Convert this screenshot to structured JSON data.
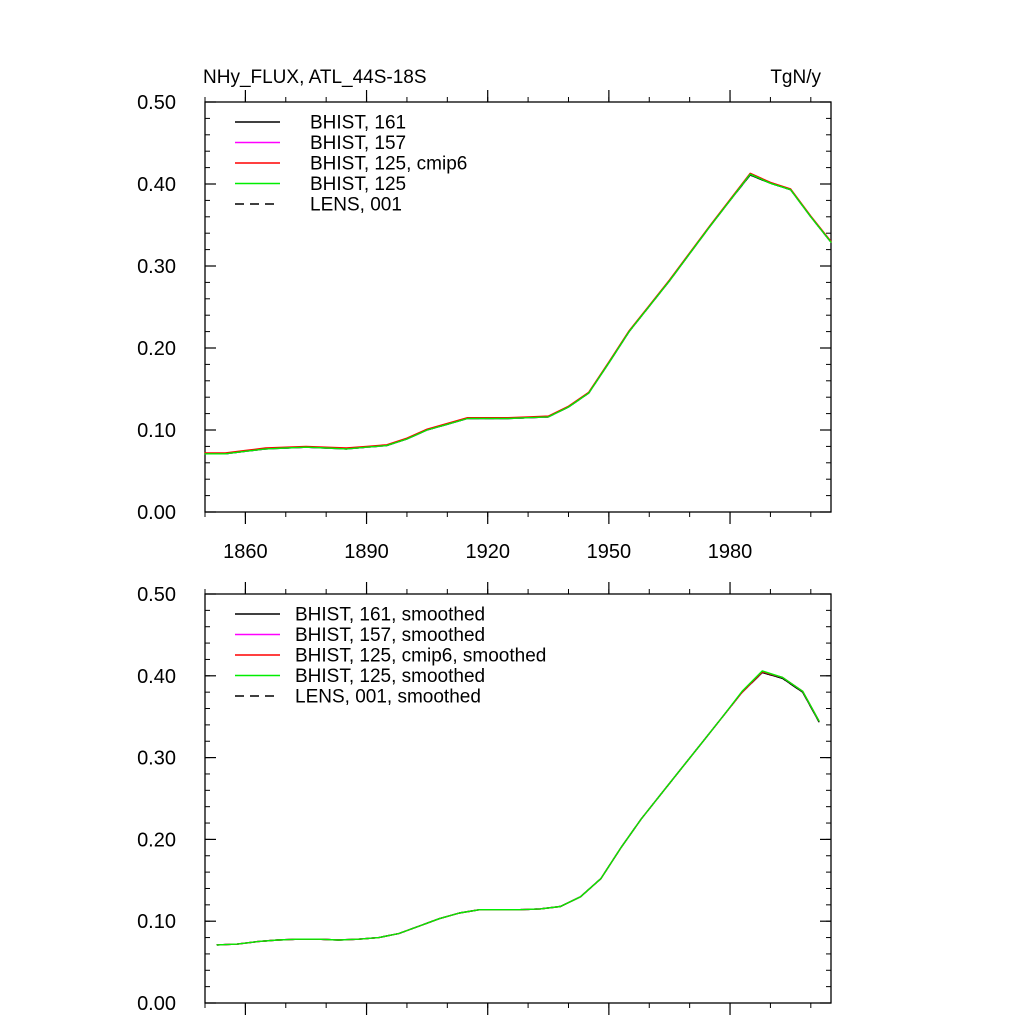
{
  "chart_data": [
    {
      "type": "line",
      "title": "NHy_FLUX, ATL_44S-18S",
      "units": "TgN/y",
      "xlabel": "",
      "ylabel": "",
      "xlim": [
        1850,
        2005
      ],
      "ylim": [
        0,
        0.5
      ],
      "xticks": [
        1860,
        1890,
        1920,
        1950,
        1980
      ],
      "xtick_labels": [
        "1860",
        "1890",
        "1920",
        "1950",
        "1980"
      ],
      "yticks": [
        0,
        0.1,
        0.2,
        0.3,
        0.4,
        0.5
      ],
      "ytick_labels": [
        "0.00",
        "0.10",
        "0.20",
        "0.30",
        "0.40",
        "0.50"
      ],
      "grid": false,
      "legend_position": "top-left",
      "x": [
        1850,
        1855,
        1860,
        1865,
        1870,
        1875,
        1880,
        1885,
        1890,
        1895,
        1900,
        1905,
        1910,
        1915,
        1920,
        1925,
        1930,
        1935,
        1940,
        1945,
        1950,
        1955,
        1960,
        1965,
        1970,
        1975,
        1980,
        1985,
        1990,
        1995,
        2000,
        2005
      ],
      "series": [
        {
          "name": "BHIST, 161",
          "color": "#000000",
          "dash": "solid",
          "values": [
            0.071,
            0.071,
            0.074,
            0.077,
            0.078,
            0.079,
            0.078,
            0.077,
            0.079,
            0.081,
            0.089,
            0.1,
            0.107,
            0.114,
            0.114,
            0.114,
            0.115,
            0.116,
            0.128,
            0.145,
            0.182,
            0.22,
            0.251,
            0.282,
            0.315,
            0.348,
            0.38,
            0.411,
            0.401,
            0.393,
            0.36,
            0.329
          ]
        },
        {
          "name": "BHIST, 157",
          "color": "#ff00ff",
          "dash": "solid",
          "values": [
            0.071,
            0.071,
            0.074,
            0.077,
            0.078,
            0.079,
            0.078,
            0.077,
            0.079,
            0.081,
            0.089,
            0.1,
            0.107,
            0.114,
            0.114,
            0.114,
            0.115,
            0.116,
            0.128,
            0.145,
            0.182,
            0.22,
            0.251,
            0.282,
            0.315,
            0.348,
            0.38,
            0.412,
            0.402,
            0.393,
            0.36,
            0.329
          ]
        },
        {
          "name": "BHIST, 125, cmip6",
          "color": "#ff0000",
          "dash": "solid",
          "values": [
            0.072,
            0.072,
            0.075,
            0.078,
            0.079,
            0.08,
            0.079,
            0.078,
            0.08,
            0.082,
            0.09,
            0.101,
            0.108,
            0.115,
            0.115,
            0.115,
            0.116,
            0.117,
            0.129,
            0.146,
            0.183,
            0.221,
            0.252,
            0.283,
            0.316,
            0.349,
            0.381,
            0.413,
            0.402,
            0.394,
            0.361,
            0.33
          ]
        },
        {
          "name": "BHIST, 125",
          "color": "#00ee00",
          "dash": "solid",
          "values": [
            0.071,
            0.071,
            0.074,
            0.077,
            0.078,
            0.079,
            0.078,
            0.077,
            0.079,
            0.081,
            0.089,
            0.1,
            0.107,
            0.114,
            0.114,
            0.114,
            0.115,
            0.116,
            0.128,
            0.145,
            0.182,
            0.22,
            0.251,
            0.282,
            0.315,
            0.348,
            0.38,
            0.412,
            0.401,
            0.393,
            0.36,
            0.329
          ]
        },
        {
          "name": "LENS, 001",
          "color": "#000000",
          "dash": "dashed",
          "values": [
            0.071,
            0.071,
            0.074,
            0.077,
            0.078,
            0.079,
            0.078,
            0.077,
            0.079,
            0.081,
            0.089,
            0.1,
            0.107,
            0.114,
            0.114,
            0.114,
            0.115,
            0.116,
            0.128,
            0.145,
            0.182,
            0.22,
            0.251,
            0.282,
            0.315,
            0.348,
            0.38,
            0.411,
            0.401,
            0.393,
            0.36,
            0.329
          ]
        }
      ]
    },
    {
      "type": "line",
      "title": "",
      "xlabel": "",
      "ylabel": "",
      "xlim": [
        1850,
        2005
      ],
      "ylim": [
        0,
        0.5
      ],
      "xticks": [
        1860,
        1890,
        1920,
        1950,
        1980
      ],
      "xtick_labels": [
        "",
        "",
        "",
        "",
        ""
      ],
      "yticks": [
        0,
        0.1,
        0.2,
        0.3,
        0.4,
        0.5
      ],
      "ytick_labels": [
        "0.00",
        "0.10",
        "0.20",
        "0.30",
        "0.40",
        "0.50"
      ],
      "grid": false,
      "legend_position": "top-left",
      "x": [
        1853,
        1858,
        1863,
        1868,
        1873,
        1878,
        1883,
        1888,
        1893,
        1898,
        1903,
        1908,
        1913,
        1918,
        1923,
        1928,
        1933,
        1938,
        1943,
        1948,
        1953,
        1958,
        1963,
        1968,
        1973,
        1978,
        1983,
        1988,
        1993,
        1998,
        2002
      ],
      "series": [
        {
          "name": "BHIST, 161, smoothed",
          "color": "#000000",
          "dash": "solid",
          "values": [
            0.071,
            0.072,
            0.075,
            0.077,
            0.078,
            0.078,
            0.077,
            0.078,
            0.08,
            0.085,
            0.094,
            0.103,
            0.11,
            0.114,
            0.114,
            0.114,
            0.115,
            0.118,
            0.13,
            0.152,
            0.19,
            0.225,
            0.256,
            0.287,
            0.318,
            0.349,
            0.38,
            0.404,
            0.397,
            0.38,
            0.344
          ]
        },
        {
          "name": "BHIST, 157, smoothed",
          "color": "#ff00ff",
          "dash": "solid",
          "values": [
            0.071,
            0.072,
            0.075,
            0.077,
            0.078,
            0.078,
            0.077,
            0.078,
            0.08,
            0.085,
            0.094,
            0.103,
            0.11,
            0.114,
            0.114,
            0.114,
            0.115,
            0.118,
            0.13,
            0.152,
            0.19,
            0.225,
            0.256,
            0.287,
            0.318,
            0.349,
            0.38,
            0.405,
            0.398,
            0.381,
            0.345
          ]
        },
        {
          "name": "BHIST, 125, cmip6, smoothed",
          "color": "#ff0000",
          "dash": "solid",
          "values": [
            0.071,
            0.072,
            0.075,
            0.077,
            0.078,
            0.078,
            0.077,
            0.078,
            0.08,
            0.085,
            0.094,
            0.103,
            0.11,
            0.114,
            0.114,
            0.114,
            0.115,
            0.118,
            0.13,
            0.152,
            0.19,
            0.225,
            0.256,
            0.287,
            0.318,
            0.349,
            0.38,
            0.405,
            0.398,
            0.381,
            0.345
          ]
        },
        {
          "name": "BHIST, 125, smoothed",
          "color": "#00ee00",
          "dash": "solid",
          "values": [
            0.071,
            0.072,
            0.075,
            0.077,
            0.078,
            0.078,
            0.077,
            0.078,
            0.08,
            0.085,
            0.094,
            0.103,
            0.11,
            0.114,
            0.114,
            0.114,
            0.115,
            0.118,
            0.13,
            0.152,
            0.19,
            0.225,
            0.256,
            0.287,
            0.318,
            0.349,
            0.381,
            0.406,
            0.398,
            0.381,
            0.345
          ]
        },
        {
          "name": "LENS, 001, smoothed",
          "color": "#000000",
          "dash": "dashed",
          "values": [
            0.071,
            0.072,
            0.075,
            0.077,
            0.078,
            0.078,
            0.077,
            0.078,
            0.08,
            0.085,
            0.094,
            0.103,
            0.11,
            0.114,
            0.114,
            0.114,
            0.115,
            0.118,
            0.13,
            0.152,
            0.19,
            0.225,
            0.256,
            0.287,
            0.318,
            0.349,
            0.38,
            0.404,
            0.397,
            0.38,
            0.344
          ]
        }
      ]
    }
  ]
}
